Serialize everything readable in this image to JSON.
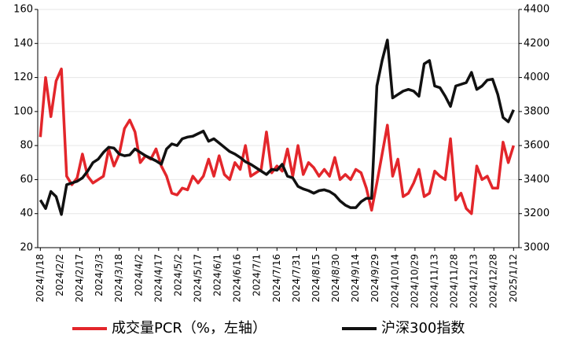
{
  "chart_data": {
    "type": "line",
    "x": [
      "2024/1/18",
      "2024/1/22",
      "2024/1/26",
      "2024/1/30",
      "2024/2/3",
      "2024/2/7",
      "2024/2/11",
      "2024/2/15",
      "2024/2/19",
      "2024/2/23",
      "2024/2/27",
      "2024/3/2",
      "2024/3/6",
      "2024/3/10",
      "2024/3/14",
      "2024/3/18",
      "2024/3/22",
      "2024/3/26",
      "2024/3/30",
      "2024/4/3",
      "2024/4/7",
      "2024/4/11",
      "2024/4/15",
      "2024/4/19",
      "2024/4/23",
      "2024/4/27",
      "2024/5/1",
      "2024/5/5",
      "2024/5/9",
      "2024/5/13",
      "2024/5/17",
      "2024/5/21",
      "2024/5/25",
      "2024/5/29",
      "2024/6/2",
      "2024/6/6",
      "2024/6/10",
      "2024/6/14",
      "2024/6/18",
      "2024/6/22",
      "2024/6/26",
      "2024/6/30",
      "2024/7/4",
      "2024/7/8",
      "2024/7/12",
      "2024/7/16",
      "2024/7/20",
      "2024/7/24",
      "2024/7/28",
      "2024/8/1",
      "2024/8/5",
      "2024/8/9",
      "2024/8/13",
      "2024/8/17",
      "2024/8/21",
      "2024/8/25",
      "2024/8/29",
      "2024/9/2",
      "2024/9/6",
      "2024/9/10",
      "2024/9/14",
      "2024/9/18",
      "2024/9/22",
      "2024/9/26",
      "2024/9/30",
      "2024/10/4",
      "2024/10/8",
      "2024/10/12",
      "2024/10/16",
      "2024/10/20",
      "2024/10/24",
      "2024/10/28",
      "2024/11/1",
      "2024/11/5",
      "2024/11/9",
      "2024/11/13",
      "2024/11/17",
      "2024/11/21",
      "2024/11/25",
      "2024/11/29",
      "2024/12/3",
      "2024/12/7",
      "2024/12/11",
      "2024/12/15",
      "2024/12/19",
      "2024/12/23",
      "2024/12/27",
      "2024/12/31",
      "2025/1/4",
      "2025/1/8",
      "2025/1/12"
    ],
    "series": [
      {
        "name": "成交量PCR（%，左轴）",
        "color": "#e3262b",
        "axis": "y",
        "values": [
          85,
          120,
          97,
          118,
          125,
          62,
          57,
          61,
          75,
          62,
          58,
          60,
          62,
          78,
          68,
          75,
          90,
          95,
          88,
          70,
          74,
          72,
          78,
          68,
          62,
          52,
          51,
          55,
          54,
          62,
          58,
          62,
          72,
          62,
          74,
          63,
          60,
          70,
          66,
          80,
          62,
          64,
          66,
          88,
          64,
          68,
          65,
          78,
          62,
          80,
          63,
          70,
          67,
          62,
          66,
          62,
          73,
          60,
          63,
          60,
          66,
          64,
          55,
          42,
          58,
          75,
          92,
          62,
          72,
          50,
          52,
          58,
          66,
          50,
          52,
          65,
          62,
          60,
          84,
          48,
          52,
          43,
          40,
          68,
          60,
          62,
          55,
          55,
          82,
          70,
          80
        ]
      },
      {
        "name": "沪深300指数",
        "color": "#111111",
        "axis": "y2",
        "values": [
          3280,
          3230,
          3330,
          3300,
          3195,
          3370,
          3380,
          3390,
          3410,
          3450,
          3500,
          3520,
          3560,
          3590,
          3585,
          3550,
          3540,
          3545,
          3580,
          3560,
          3540,
          3525,
          3510,
          3490,
          3580,
          3610,
          3600,
          3640,
          3650,
          3655,
          3670,
          3685,
          3625,
          3640,
          3615,
          3590,
          3565,
          3550,
          3530,
          3505,
          3490,
          3470,
          3450,
          3430,
          3460,
          3455,
          3490,
          3420,
          3410,
          3360,
          3345,
          3335,
          3320,
          3335,
          3340,
          3330,
          3310,
          3275,
          3250,
          3235,
          3235,
          3270,
          3290,
          3290,
          3950,
          4100,
          4220,
          3880,
          3900,
          3920,
          3930,
          3920,
          3890,
          4080,
          4100,
          3950,
          3940,
          3890,
          3830,
          3950,
          3960,
          3970,
          4030,
          3930,
          3950,
          3985,
          3990,
          3900,
          3765,
          3740,
          3810
        ]
      }
    ],
    "xlim": [
      "2024/1/16",
      "2025/1/16"
    ],
    "xticks": [
      "2024/1/18",
      "2024/2/2",
      "2024/2/17",
      "2024/3/3",
      "2024/3/18",
      "2024/4/2",
      "2024/4/17",
      "2024/5/2",
      "2024/5/17",
      "2024/6/1",
      "2024/6/16",
      "2024/7/1",
      "2024/7/16",
      "2024/7/31",
      "2024/8/15",
      "2024/8/30",
      "2024/9/14",
      "2024/9/29",
      "2024/10/14",
      "2024/10/29",
      "2024/11/13",
      "2024/11/28",
      "2024/12/13",
      "2024/12/28",
      "2025/1/12"
    ],
    "ylim": [
      20,
      160
    ],
    "yticks": [
      20,
      40,
      60,
      80,
      100,
      120,
      140,
      160
    ],
    "y2lim": [
      3000,
      4400
    ],
    "y2ticks": [
      3000,
      3200,
      3400,
      3600,
      3800,
      4000,
      4200,
      4400
    ],
    "grid": true,
    "legend": "bottom"
  }
}
